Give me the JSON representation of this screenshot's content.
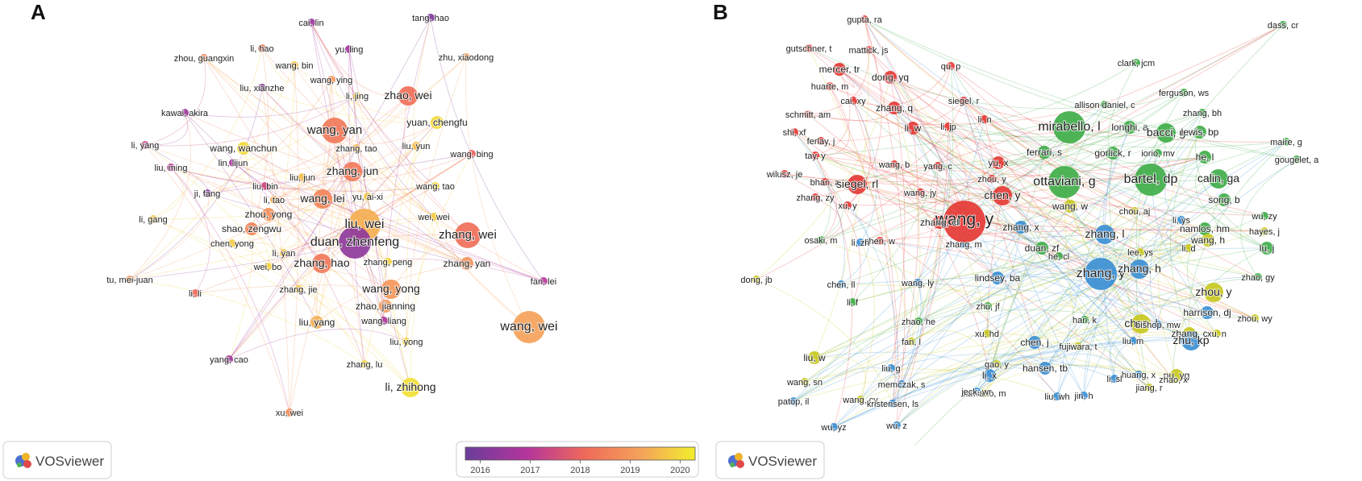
{
  "figure": {
    "panels": [
      {
        "letter": "A",
        "type": "coauthorship-overlay-map",
        "tool_label": "VOSviewer",
        "legend": {
          "ticks": [
            "2016",
            "2017",
            "2018",
            "2019",
            "2020"
          ],
          "range": [
            2015.7,
            2020.3
          ]
        },
        "nodes": [
          {
            "label": "cai, lin",
            "year": 2016.5,
            "weight": 1
          },
          {
            "label": "tang, hao",
            "year": 2016.0,
            "weight": 1
          },
          {
            "label": "li, hao",
            "year": 2018.3,
            "weight": 1
          },
          {
            "label": "yu, ling",
            "year": 2016.6,
            "weight": 1
          },
          {
            "label": "zhou, guangxin",
            "year": 2018.7,
            "weight": 1
          },
          {
            "label": "zhu, xiaodong",
            "year": 2019.2,
            "weight": 1
          },
          {
            "label": "wang, bin",
            "year": 2019.7,
            "weight": 1
          },
          {
            "label": "wang, ying",
            "year": 2019.0,
            "weight": 1
          },
          {
            "label": "liu, xianzhe",
            "year": 2016.2,
            "weight": 1
          },
          {
            "label": "li, jing",
            "year": 2019.8,
            "weight": 1
          },
          {
            "label": "zhao, wei",
            "year": 2018.2,
            "weight": 3
          },
          {
            "label": "kawai, akira",
            "year": 2016.5,
            "weight": 1
          },
          {
            "label": "yuan, chengfu",
            "year": 2020.0,
            "weight": 2
          },
          {
            "label": "wang, yan",
            "year": 2018.4,
            "weight": 4
          },
          {
            "label": "li, yang",
            "year": 2017.3,
            "weight": 1
          },
          {
            "label": "wang, wanchun",
            "year": 2020.0,
            "weight": 2
          },
          {
            "label": "zhang, tao",
            "year": 2019.5,
            "weight": 1
          },
          {
            "label": "liu, yun",
            "year": 2019.6,
            "weight": 1
          },
          {
            "label": "wang, bing",
            "year": 2018.0,
            "weight": 1
          },
          {
            "label": "liu, ming",
            "year": 2017.0,
            "weight": 1
          },
          {
            "label": "lin, lijun",
            "year": 2016.7,
            "weight": 1
          },
          {
            "label": "zhang, jun",
            "year": 2018.4,
            "weight": 3
          },
          {
            "label": "liu, bin",
            "year": 2017.4,
            "weight": 1
          },
          {
            "label": "liu, jun",
            "year": 2019.6,
            "weight": 1
          },
          {
            "label": "wang, tao",
            "year": 2019.9,
            "weight": 1
          },
          {
            "label": "ji, fang",
            "year": 2016.2,
            "weight": 1
          },
          {
            "label": "li, tao",
            "year": 2019.4,
            "weight": 1
          },
          {
            "label": "wang, lei",
            "year": 2018.6,
            "weight": 3
          },
          {
            "label": "yu, ai-xi",
            "year": 2019.7,
            "weight": 1
          },
          {
            "label": "zhou, yong",
            "year": 2018.8,
            "weight": 2
          },
          {
            "label": "liu, wei",
            "year": 2019.4,
            "weight": 5
          },
          {
            "label": "wei, wei",
            "year": 2019.8,
            "weight": 1
          },
          {
            "label": "li, gang",
            "year": 2019.8,
            "weight": 1
          },
          {
            "label": "shao, zengwu",
            "year": 2018.6,
            "weight": 2
          },
          {
            "label": "zhang, wei",
            "year": 2018.2,
            "weight": 4
          },
          {
            "label": "chen, yong",
            "year": 2019.8,
            "weight": 1
          },
          {
            "label": "duan, zhenfeng",
            "year": 2016.3,
            "weight": 5
          },
          {
            "label": "li, yan",
            "year": 2019.6,
            "weight": 1
          },
          {
            "label": "wei, bo",
            "year": 2019.9,
            "weight": 1
          },
          {
            "label": "zhang, hao",
            "year": 2018.4,
            "weight": 3
          },
          {
            "label": "zhang, peng",
            "year": 2019.9,
            "weight": 1
          },
          {
            "label": "zhang, yan",
            "year": 2018.9,
            "weight": 2
          },
          {
            "label": "tu, mei-juan",
            "year": 2019.0,
            "weight": 1
          },
          {
            "label": "fan, lei",
            "year": 2017.0,
            "weight": 1
          },
          {
            "label": "li, li",
            "year": 2018.1,
            "weight": 1
          },
          {
            "label": "zhang, jie",
            "year": 2019.7,
            "weight": 1
          },
          {
            "label": "wang, yong",
            "year": 2019.0,
            "weight": 3
          },
          {
            "label": "zhao, jianning",
            "year": 2019.0,
            "weight": 2
          },
          {
            "label": "liu, yang",
            "year": 2019.4,
            "weight": 2
          },
          {
            "label": "wang, liang",
            "year": 2016.8,
            "weight": 1
          },
          {
            "label": "wang, wei",
            "year": 2019.2,
            "weight": 5
          },
          {
            "label": "liu, yong",
            "year": 2019.9,
            "weight": 1
          },
          {
            "label": "yang, cao",
            "year": 2016.6,
            "weight": 1
          },
          {
            "label": "zhang, lu",
            "year": 2020.0,
            "weight": 1
          },
          {
            "label": "li, zhihong",
            "year": 2020.1,
            "weight": 3
          },
          {
            "label": "xu, wei",
            "year": 2018.8,
            "weight": 1
          }
        ]
      },
      {
        "letter": "B",
        "type": "coauthorship-cluster-map",
        "tool_label": "VOSviewer",
        "cluster_colors": {
          "red": "#e53935",
          "green": "#3fae49",
          "blue": "#3b8fd4",
          "yellow": "#c8c820"
        },
        "nodes": [
          {
            "label": "gupta, ra",
            "cluster": "red",
            "weight": 1
          },
          {
            "label": "dass, cr",
            "cluster": "green",
            "weight": 1
          },
          {
            "label": "gutschner, t",
            "cluster": "red",
            "weight": 1
          },
          {
            "label": "mattick, js",
            "cluster": "red",
            "weight": 1
          },
          {
            "label": "clark, jcm",
            "cluster": "green",
            "weight": 1
          },
          {
            "label": "mercer, tr",
            "cluster": "red",
            "weight": 2
          },
          {
            "label": "qu, p",
            "cluster": "red",
            "weight": 1
          },
          {
            "label": "dong, yq",
            "cluster": "red",
            "weight": 2
          },
          {
            "label": "huarte, m",
            "cluster": "red",
            "weight": 1
          },
          {
            "label": "ferguson, ws",
            "cluster": "green",
            "weight": 1
          },
          {
            "label": "cai, xy",
            "cluster": "red",
            "weight": 1
          },
          {
            "label": "siegel, r",
            "cluster": "red",
            "weight": 1
          },
          {
            "label": "allison daniel, c",
            "cluster": "green",
            "weight": 1
          },
          {
            "label": "zhang, bh",
            "cluster": "green",
            "weight": 1
          },
          {
            "label": "schmitt, am",
            "cluster": "red",
            "weight": 1
          },
          {
            "label": "zhang, q",
            "cluster": "red",
            "weight": 2
          },
          {
            "label": "li, n",
            "cluster": "red",
            "weight": 1
          },
          {
            "label": "mirabello, l",
            "cluster": "green",
            "weight": 5
          },
          {
            "label": "shi, xf",
            "cluster": "red",
            "weight": 1
          },
          {
            "label": "li, w",
            "cluster": "red",
            "weight": 2
          },
          {
            "label": "li, jp",
            "cluster": "red",
            "weight": 1
          },
          {
            "label": "longhi, a",
            "cluster": "green",
            "weight": 2
          },
          {
            "label": "bacci, g",
            "cluster": "green",
            "weight": 3
          },
          {
            "label": "lewis, bp",
            "cluster": "green",
            "weight": 2
          },
          {
            "label": "ferlay, j",
            "cluster": "red",
            "weight": 1
          },
          {
            "label": "ferrari, s",
            "cluster": "green",
            "weight": 2
          },
          {
            "label": "gorlick, r",
            "cluster": "green",
            "weight": 2
          },
          {
            "label": "iorio, mv",
            "cluster": "green",
            "weight": 1
          },
          {
            "label": "he, l",
            "cluster": "green",
            "weight": 2
          },
          {
            "label": "maire, g",
            "cluster": "green",
            "weight": 1
          },
          {
            "label": "tay, y",
            "cluster": "red",
            "weight": 1
          },
          {
            "label": "yu, x",
            "cluster": "red",
            "weight": 2
          },
          {
            "label": "gougelet, a",
            "cluster": "green",
            "weight": 1
          },
          {
            "label": "wilusz, je",
            "cluster": "red",
            "weight": 1
          },
          {
            "label": "wang, b",
            "cluster": "red",
            "weight": 1
          },
          {
            "label": "yang, c",
            "cluster": "red",
            "weight": 1
          },
          {
            "label": "zhou, y",
            "cluster": "red",
            "weight": 1
          },
          {
            "label": "ottaviani, g",
            "cluster": "green",
            "weight": 5
          },
          {
            "label": "bartel, dp",
            "cluster": "green",
            "weight": 5
          },
          {
            "label": "calin, ga",
            "cluster": "green",
            "weight": 3
          },
          {
            "label": "bhan, a",
            "cluster": "red",
            "weight": 1
          },
          {
            "label": "siegel, rl",
            "cluster": "red",
            "weight": 3
          },
          {
            "label": "wang, jy",
            "cluster": "red",
            "weight": 1
          },
          {
            "label": "zhang, zy",
            "cluster": "red",
            "weight": 1
          },
          {
            "label": "chen, y",
            "cluster": "red",
            "weight": 3
          },
          {
            "label": "song, b",
            "cluster": "green",
            "weight": 2
          },
          {
            "label": "xu, y",
            "cluster": "red",
            "weight": 1
          },
          {
            "label": "wang, w",
            "cluster": "yellow",
            "weight": 2
          },
          {
            "label": "chou, aj",
            "cluster": "yellow",
            "weight": 1
          },
          {
            "label": "wu, zy",
            "cluster": "green",
            "weight": 1
          },
          {
            "label": "wang, y",
            "cluster": "red",
            "weight": 6
          },
          {
            "label": "zhang, cl",
            "cluster": "red",
            "weight": 2
          },
          {
            "label": "zhang, x",
            "cluster": "blue",
            "weight": 2
          },
          {
            "label": "li, ys",
            "cluster": "blue",
            "weight": 1
          },
          {
            "label": "namlos, hm",
            "cluster": "green",
            "weight": 2
          },
          {
            "label": "hayes, j",
            "cluster": "yellow",
            "weight": 1
          },
          {
            "label": "osaki, m",
            "cluster": "green",
            "weight": 1
          },
          {
            "label": "chen, w",
            "cluster": "red",
            "weight": 1
          },
          {
            "label": "li, zh",
            "cluster": "blue",
            "weight": 1
          },
          {
            "label": "zhang, m",
            "cluster": "blue",
            "weight": 1
          },
          {
            "label": "zhang, l",
            "cluster": "blue",
            "weight": 3
          },
          {
            "label": "wang, h",
            "cluster": "yellow",
            "weight": 2
          },
          {
            "label": "duan, zf",
            "cluster": "green",
            "weight": 2
          },
          {
            "label": "li, d",
            "cluster": "yellow",
            "weight": 1
          },
          {
            "label": "lu, j",
            "cluster": "green",
            "weight": 2
          },
          {
            "label": "he, cl",
            "cluster": "green",
            "weight": 1
          },
          {
            "label": "lee, ys",
            "cluster": "yellow",
            "weight": 1
          },
          {
            "label": "dong, jb",
            "cluster": "yellow",
            "weight": 1
          },
          {
            "label": "chen, ll",
            "cluster": "blue",
            "weight": 1
          },
          {
            "label": "wang, ly",
            "cluster": "blue",
            "weight": 1
          },
          {
            "label": "lindsey, ba",
            "cluster": "blue",
            "weight": 2
          },
          {
            "label": "zhang, y",
            "cluster": "blue",
            "weight": 5
          },
          {
            "label": "zhang, h",
            "cluster": "blue",
            "weight": 3
          },
          {
            "label": "zhou, y",
            "cluster": "yellow",
            "weight": 3
          },
          {
            "label": "zhao, gy",
            "cluster": "green",
            "weight": 1
          },
          {
            "label": "li, f",
            "cluster": "green",
            "weight": 1
          },
          {
            "label": "zhu, jf",
            "cluster": "green",
            "weight": 1
          },
          {
            "label": "harrison, dj",
            "cluster": "blue",
            "weight": 2
          },
          {
            "label": "zhou, wy",
            "cluster": "yellow",
            "weight": 1
          },
          {
            "label": "han, k",
            "cluster": "green",
            "weight": 1
          },
          {
            "label": "zhao, he",
            "cluster": "green",
            "weight": 1
          },
          {
            "label": "chen, l",
            "cluster": "yellow",
            "weight": 3
          },
          {
            "label": "bishop, mw",
            "cluster": "blue",
            "weight": 1
          },
          {
            "label": "zhang, c",
            "cluster": "yellow",
            "weight": 2
          },
          {
            "label": "xu, n",
            "cluster": "yellow",
            "weight": 1
          },
          {
            "label": "fan, l",
            "cluster": "yellow",
            "weight": 1
          },
          {
            "label": "xu, hd",
            "cluster": "yellow",
            "weight": 1
          },
          {
            "label": "zhu, kp",
            "cluster": "blue",
            "weight": 3
          },
          {
            "label": "chen, j",
            "cluster": "blue",
            "weight": 2
          },
          {
            "label": "fujiwara, t",
            "cluster": "yellow",
            "weight": 1
          },
          {
            "label": "liu, m",
            "cluster": "blue",
            "weight": 1
          },
          {
            "label": "liu, w",
            "cluster": "yellow",
            "weight": 2
          },
          {
            "label": "gao, y",
            "cluster": "yellow",
            "weight": 1
          },
          {
            "label": "hansen, tb",
            "cluster": "blue",
            "weight": 2
          },
          {
            "label": "liu, g",
            "cluster": "blue",
            "weight": 1
          },
          {
            "label": "li, x",
            "cluster": "blue",
            "weight": 2
          },
          {
            "label": "huang, x",
            "cluster": "blue",
            "weight": 1
          },
          {
            "label": "pu, yg",
            "cluster": "yellow",
            "weight": 2
          },
          {
            "label": "wang, sn",
            "cluster": "yellow",
            "weight": 1
          },
          {
            "label": "memczak, s",
            "cluster": "blue",
            "weight": 1
          },
          {
            "label": "li, sl",
            "cluster": "blue",
            "weight": 1
          },
          {
            "label": "zhao, x",
            "cluster": "yellow",
            "weight": 1
          },
          {
            "label": "kawano, m",
            "cluster": "yellow",
            "weight": 1
          },
          {
            "label": "jiang, r",
            "cluster": "yellow",
            "weight": 1
          },
          {
            "label": "jin, h",
            "cluster": "blue",
            "weight": 1
          },
          {
            "label": "jeck, wr",
            "cluster": "blue",
            "weight": 1
          },
          {
            "label": "patop, il",
            "cluster": "blue",
            "weight": 1
          },
          {
            "label": "wang, cy",
            "cluster": "yellow",
            "weight": 1
          },
          {
            "label": "liu, wh",
            "cluster": "blue",
            "weight": 1
          },
          {
            "label": "kristensen, ls",
            "cluster": "blue",
            "weight": 1
          },
          {
            "label": "wu, yz",
            "cluster": "blue",
            "weight": 1
          },
          {
            "label": "wu, z",
            "cluster": "blue",
            "weight": 1
          }
        ]
      }
    ]
  }
}
